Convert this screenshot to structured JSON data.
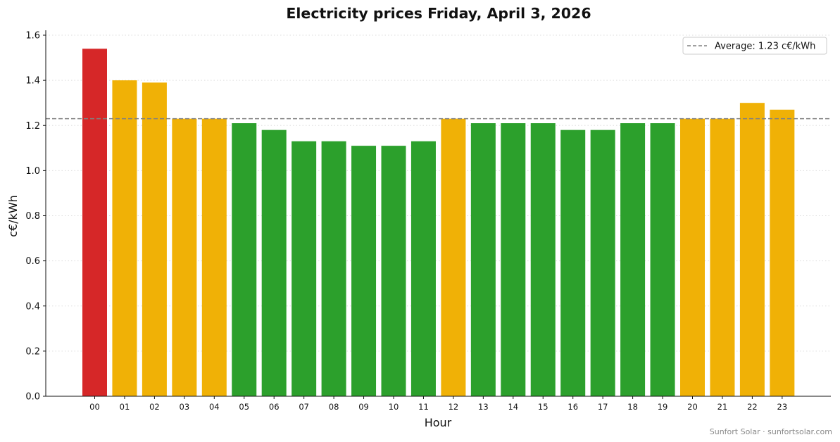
{
  "chart_data": {
    "type": "bar",
    "title": "Electricity prices Friday, April 3, 2026",
    "xlabel": "Hour",
    "ylabel": "c€/kWh",
    "categories": [
      "00",
      "01",
      "02",
      "03",
      "04",
      "05",
      "06",
      "07",
      "08",
      "09",
      "10",
      "11",
      "12",
      "13",
      "14",
      "15",
      "16",
      "17",
      "18",
      "19",
      "20",
      "21",
      "22",
      "23"
    ],
    "values": [
      1.54,
      1.4,
      1.39,
      1.23,
      1.23,
      1.21,
      1.18,
      1.13,
      1.13,
      1.11,
      1.11,
      1.13,
      1.23,
      1.21,
      1.21,
      1.21,
      1.18,
      1.18,
      1.21,
      1.21,
      1.23,
      1.23,
      1.3,
      1.27
    ],
    "bar_level": [
      "high",
      "mid",
      "mid",
      "mid",
      "mid",
      "low",
      "low",
      "low",
      "low",
      "low",
      "low",
      "low",
      "mid",
      "low",
      "low",
      "low",
      "low",
      "low",
      "low",
      "low",
      "mid",
      "mid",
      "mid",
      "mid"
    ],
    "colors": {
      "high": "#d62728",
      "mid": "#f0b106",
      "low": "#2ca02c",
      "average_line": "#808080",
      "grid": "#dddddd"
    },
    "ylim": [
      0,
      1.6
    ],
    "yticks": [
      "0.0",
      "0.2",
      "0.4",
      "0.6",
      "0.8",
      "1.0",
      "1.2",
      "1.4",
      "1.6"
    ],
    "average": {
      "value": 1.23,
      "label": "Average: 1.23 c€/kWh"
    },
    "grid": "horizontal dotted",
    "legend_position": "top-right"
  },
  "credit": "Sunfort Solar · sunfortsolar.com"
}
